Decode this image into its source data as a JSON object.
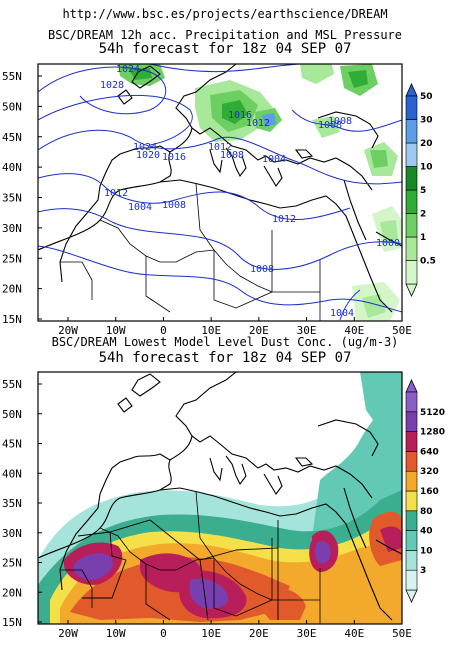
{
  "header": {
    "url": "http://www.bsc.es/projects/earthscience/DREAM"
  },
  "map_top": {
    "title": "BSC/DREAM 12h acc. Precipitation and MSL Pressure",
    "subtitle": "54h forecast for 18z 04 SEP 07",
    "legend_values": [
      "0.5",
      "1",
      "2",
      "5",
      "10",
      "20",
      "30",
      "50"
    ],
    "legend_colors": [
      "#d3f5c8",
      "#a8e89a",
      "#6dcf62",
      "#2fad36",
      "#168a26",
      "#9ec9f0",
      "#5b9de6",
      "#2a62d1"
    ],
    "isobar_labels": [
      "1024",
      "1028",
      "1024",
      "1020",
      "1016",
      "1012",
      "1008",
      "1004",
      "1008",
      "1012",
      "1016",
      "1012",
      "1008",
      "1004",
      "1012",
      "1008",
      "1008",
      "1000",
      "1004"
    ],
    "isobar_color": "#1a2fd0"
  },
  "map_bottom": {
    "title": "BSC/DREAM Lowest Model Level Dust Conc. (ug/m-3)",
    "subtitle": "54h forecast for 18z 04 SEP 07",
    "legend_values": [
      "3",
      "10",
      "40",
      "80",
      "160",
      "320",
      "640",
      "1280",
      "5120"
    ],
    "legend_colors": [
      "#d8f3ef",
      "#a4e4da",
      "#62c9b5",
      "#3aae8e",
      "#f5e04a",
      "#f2a92c",
      "#e15a2c",
      "#b81f5a",
      "#7a3fae",
      "#8a5ec4"
    ]
  },
  "axes": {
    "lat_labels": [
      "55N",
      "50N",
      "45N",
      "40N",
      "35N",
      "30N",
      "25N",
      "20N",
      "15N"
    ],
    "lon_labels": [
      "20W",
      "10W",
      "0",
      "10E",
      "20E",
      "30E",
      "40E",
      "50E"
    ]
  }
}
